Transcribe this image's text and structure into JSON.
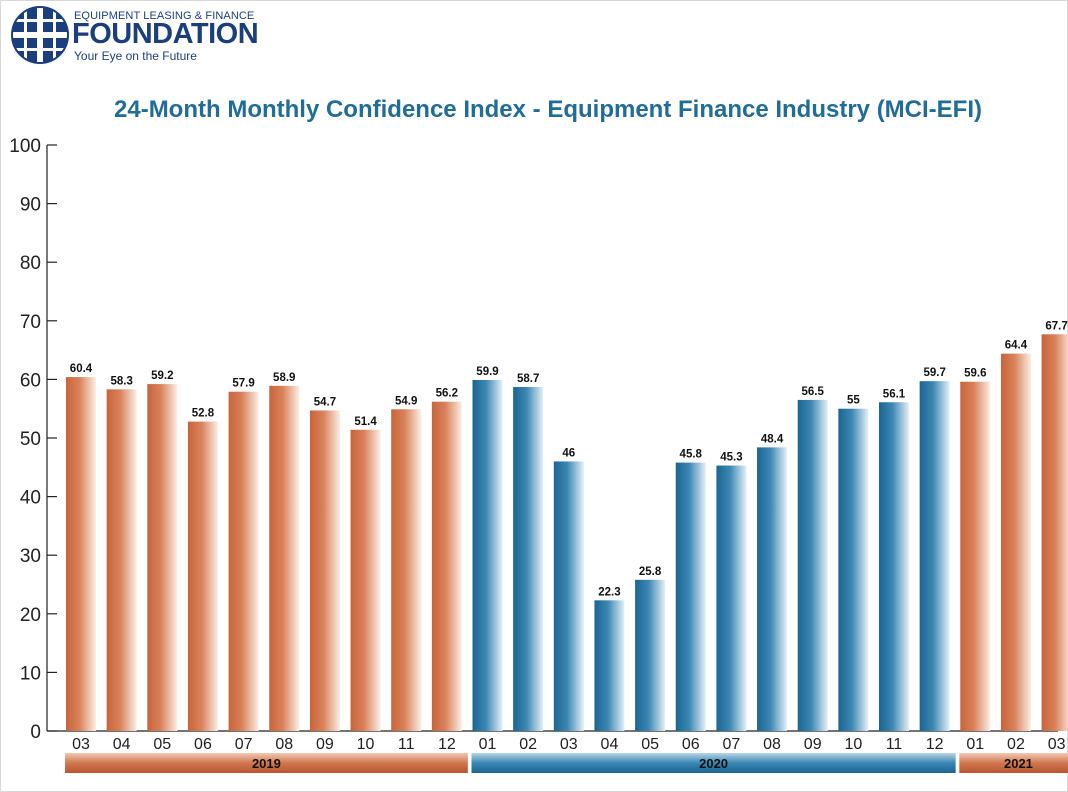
{
  "logo": {
    "small": "EQUIPMENT LEASING & FINANCE",
    "big": "FOUNDATION",
    "tagline": "Your Eye on the Future"
  },
  "colors": {
    "orange": "#c8643c",
    "blue": "#1f6d98",
    "title": "#1f6d98",
    "logo": "#1b3f7d"
  },
  "chart_data": {
    "type": "bar",
    "title": "24-Month Monthly Confidence Index - Equipment Finance Industry (MCI-EFI)",
    "ylim": [
      0,
      100
    ],
    "yticks": [
      0,
      10,
      20,
      30,
      40,
      50,
      60,
      70,
      80,
      90,
      100
    ],
    "grid": false,
    "categories": [
      "03",
      "04",
      "05",
      "06",
      "07",
      "08",
      "09",
      "10",
      "11",
      "12",
      "01",
      "02",
      "03",
      "04",
      "05",
      "06",
      "07",
      "08",
      "09",
      "10",
      "11",
      "12",
      "01",
      "02",
      "03"
    ],
    "values": [
      60.4,
      58.3,
      59.2,
      52.8,
      57.9,
      58.9,
      54.7,
      51.4,
      54.9,
      56.2,
      59.9,
      58.7,
      46,
      22.3,
      25.8,
      45.8,
      45.3,
      48.4,
      56.5,
      55,
      56.1,
      59.7,
      59.6,
      64.4,
      67.7
    ],
    "data_labels": [
      "60.4",
      "58.3",
      "59.2",
      "52.8",
      "57.9",
      "58.9",
      "54.7",
      "51.4",
      "54.9",
      "56.2",
      "59.9",
      "58.7",
      "46",
      "22.3",
      "25.8",
      "45.8",
      "45.3",
      "48.4",
      "56.5",
      "55",
      "56.1",
      "59.7",
      "59.6",
      "64.4",
      "67.7"
    ],
    "year_groups": [
      {
        "label": "2019",
        "start": 0,
        "end": 9,
        "color": "orange"
      },
      {
        "label": "2020",
        "start": 10,
        "end": 21,
        "color": "blue"
      },
      {
        "label": "2021",
        "start": 22,
        "end": 24,
        "color": "orange"
      }
    ]
  }
}
